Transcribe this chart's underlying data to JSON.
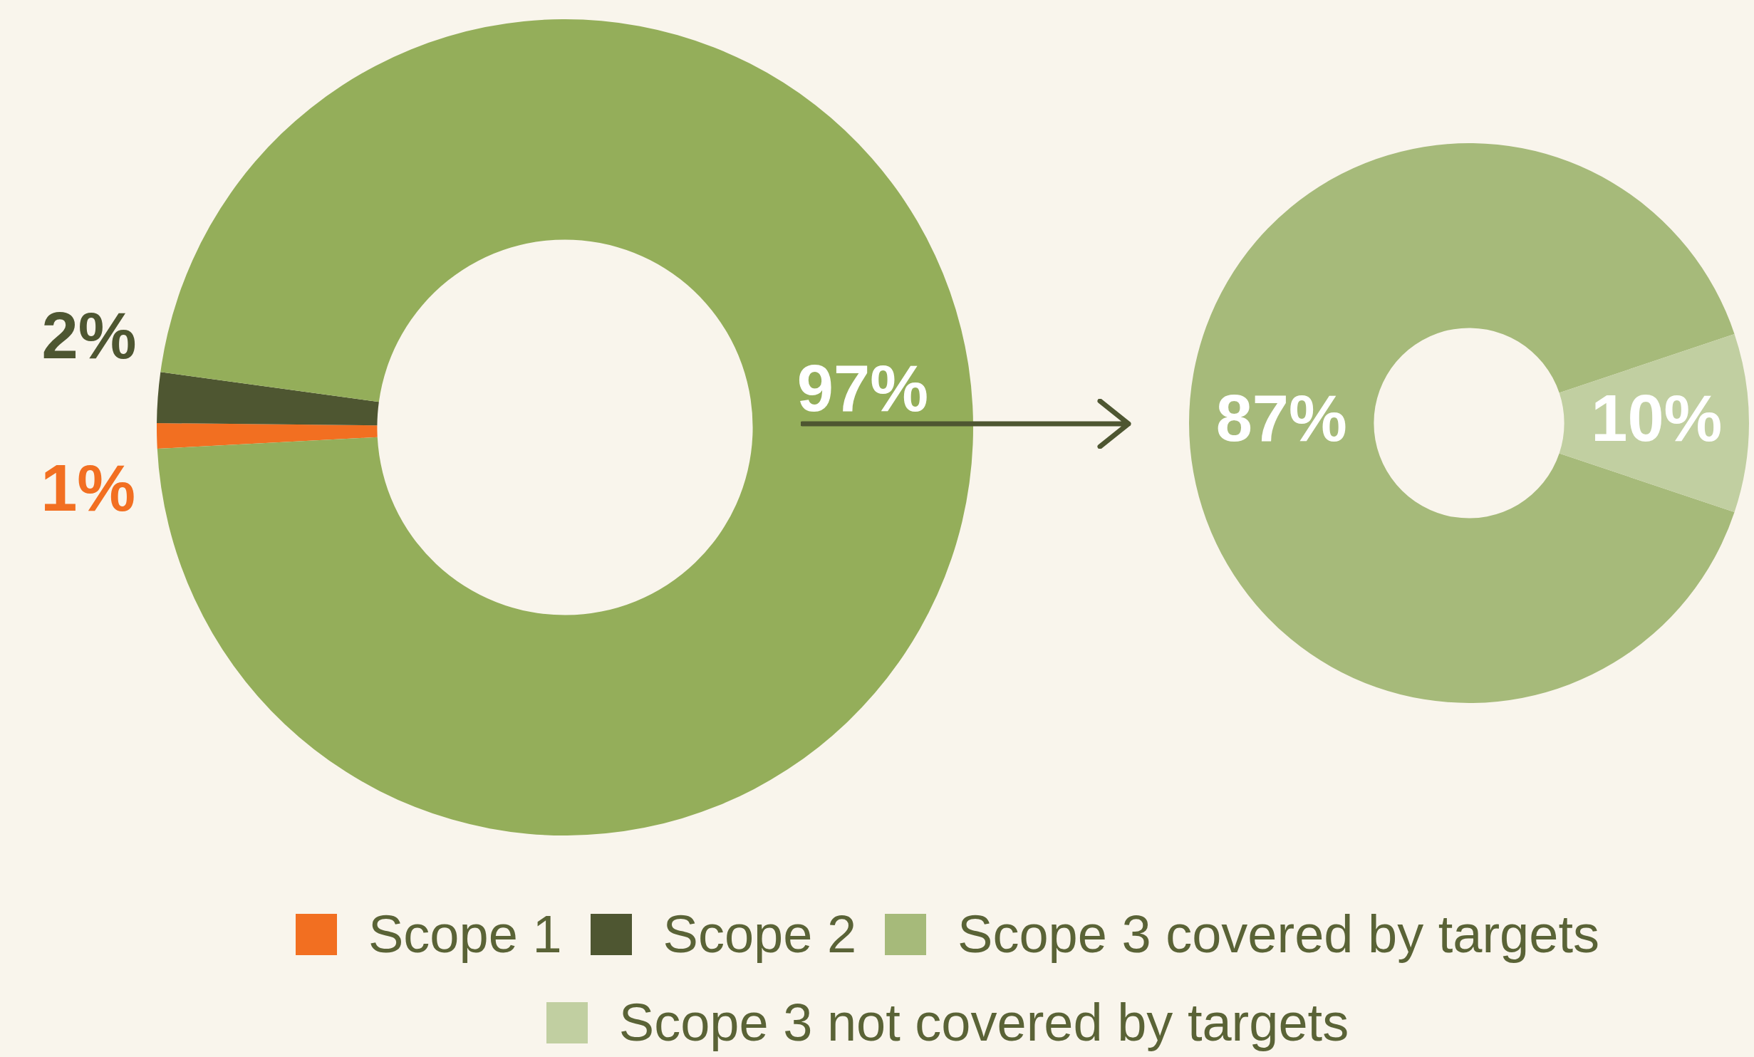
{
  "chart_data": [
    {
      "type": "donut",
      "categories": [
        "Scope 1",
        "Scope 2",
        null
      ],
      "values": [
        1,
        2,
        97
      ],
      "value_labels": [
        "1%",
        "2%",
        "97%"
      ],
      "colors": [
        "#f26f21",
        "#4e5631",
        "#94ae5a"
      ],
      "legend": "bottom"
    },
    {
      "type": "donut",
      "categories": [
        "Scope 3 covered by targets",
        "Scope 3 not covered by targets"
      ],
      "values": [
        87,
        10
      ],
      "value_labels": [
        "87%",
        "10%"
      ],
      "colors": [
        "#a6ba7a",
        "#c1cfa1"
      ],
      "legend": "bottom"
    }
  ]
}
